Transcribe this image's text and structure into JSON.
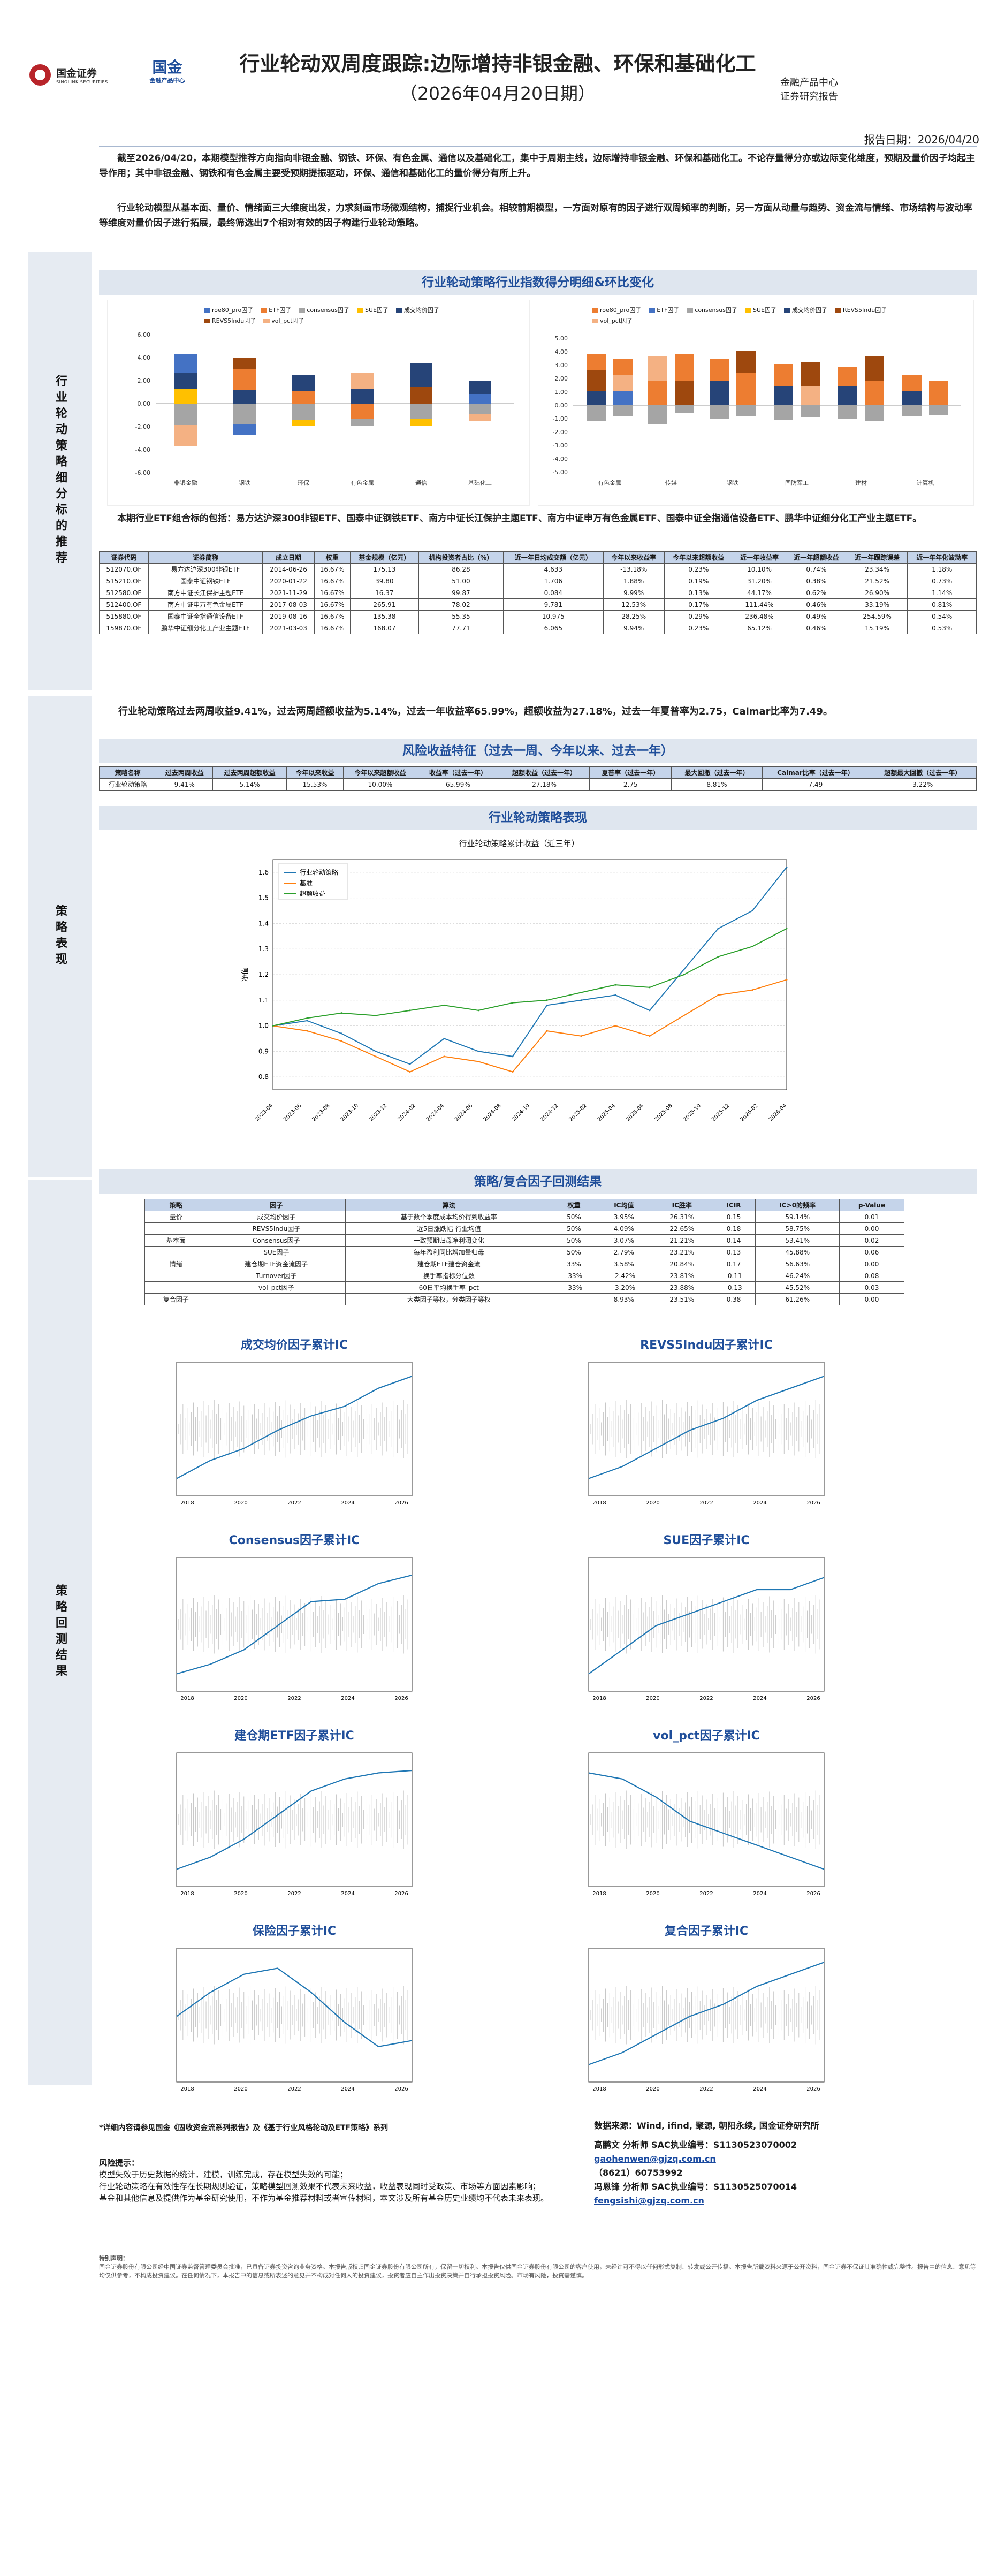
{
  "header": {
    "brand": "国金证券",
    "brand_en": "SINOLINK SECURITIES",
    "brand2": "国金",
    "brand2_sub": "金融产品中心",
    "title": "行业轮动双周度跟踪:边际增持非银金融、环保和基础化工",
    "subtitle": "（2026年04月20日期）",
    "dept1": "金融产品中心",
    "dept2": "证券研究报告",
    "report_date": "报告日期：2026/04/20"
  },
  "intro": {
    "p1": "截至2026/04/20，本期模型推荐方向指向非银金融、钢铁、环保、有色金属、通信以及基础化工，集中于周期主线，边际增持非银金融、环保和基础化工。不论存量得分亦或边际变化维度，预期及量价因子均起主导作用；其中非银金融、钢铁和有色金属主要受预期提振驱动，环保、通信和基础化工的量价得分有所上升。",
    "p2": "行业轮动模型从基本面、量价、情绪面三大维度出发，力求刻画市场微观结构，捕捉行业机会。相较前期模型，一方面对原有的因子进行双周频率的判断，另一方面从动量与趋势、资金流与情绪、市场结构与波动率等维度对量价因子进行拓展，最终筛选出7个相对有效的因子构建行业轮动策略。"
  },
  "section1": {
    "sidebar": "行业轮动策略细分标的推荐",
    "band": "行业轮动策略行业指数得分明细&环比变化",
    "left_legend": [
      "roe80_pro因子",
      "ETF因子",
      "consensus因子",
      "SUE因子",
      "成交均价因子",
      "REVS5Indu因子",
      "vol_pct因子"
    ],
    "right_legend": [
      "roe80_pro因子",
      "ETF因子",
      "consensus因子",
      "SUE因子",
      "成交均价因子",
      "REVS5Indu因子",
      "vol_pct因子"
    ],
    "left_categories": [
      "非银金融",
      "钢铁",
      "环保",
      "有色金属",
      "通信",
      "基础化工"
    ],
    "right_categories": [
      "有色金属",
      "传媒",
      "钢铁",
      "国防军工",
      "建材",
      "计算机"
    ],
    "left_yticks": [
      "6.00",
      "4.00",
      "2.00",
      "0.00",
      "-2.00",
      "-4.00",
      "-6.00"
    ],
    "right_yticks": [
      "5.00",
      "4.00",
      "3.00",
      "2.00",
      "1.00",
      "0.00",
      "-1.00",
      "-2.00",
      "-3.00",
      "-4.00",
      "-5.00"
    ],
    "etf_intro": "本期行业ETF组合标的包括：易方达沪深300非银ETF、国泰中证钢铁ETF、南方中证长江保护主题ETF、南方中证申万有色金属ETF、国泰中证全指通信设备ETF、鹏华中证细分化工产业主题ETF。",
    "table_headers": [
      "证券代码",
      "证券简称",
      "成立日期",
      "权重",
      "基金规模（亿元）",
      "机构投资者占比（%）",
      "近一年日均成交额（亿元）",
      "今年以来收益率",
      "今年以来超额收益",
      "近一年收益率",
      "近一年超额收益",
      "近一年跟踪误差",
      "近一年年化波动率"
    ],
    "table_rows": [
      [
        "512070.OF",
        "易方达沪深300非银ETF",
        "2014-06-26",
        "16.67%",
        "175.13",
        "86.28",
        "4.633",
        "-13.18%",
        "0.23%",
        "10.10%",
        "0.74%",
        "23.34%",
        "1.18%"
      ],
      [
        "515210.OF",
        "国泰中证钢铁ETF",
        "2020-01-22",
        "16.67%",
        "39.80",
        "51.00",
        "1.706",
        "1.88%",
        "0.19%",
        "31.20%",
        "0.38%",
        "21.52%",
        "0.73%"
      ],
      [
        "512580.OF",
        "南方中证长江保护主题ETF",
        "2021-11-29",
        "16.67%",
        "16.37",
        "99.87",
        "0.084",
        "9.99%",
        "0.13%",
        "44.17%",
        "0.62%",
        "26.90%",
        "1.14%"
      ],
      [
        "512400.OF",
        "南方中证申万有色金属ETF",
        "2017-08-03",
        "16.67%",
        "265.91",
        "78.02",
        "9.781",
        "12.53%",
        "0.17%",
        "111.44%",
        "0.46%",
        "33.19%",
        "0.81%"
      ],
      [
        "515880.OF",
        "国泰中证全指通信设备ETF",
        "2019-08-16",
        "16.67%",
        "135.38",
        "55.35",
        "10.975",
        "28.25%",
        "0.29%",
        "236.48%",
        "0.49%",
        "254.59%",
        "0.54%"
      ],
      [
        "159870.OF",
        "鹏华中证细分化工产业主题ETF",
        "2021-03-03",
        "16.67%",
        "168.07",
        "77.71",
        "6.065",
        "9.94%",
        "0.23%",
        "65.12%",
        "0.46%",
        "15.19%",
        "0.53%"
      ]
    ]
  },
  "section2": {
    "sidebar": "策略表现",
    "perf_text": "行业轮动策略过去两周收益9.41%，过去两周超额收益为5.14%，过去一年收益率65.99%，超额收益为27.18%，过去一年夏普率为2.75，Calmar比率为7.49。",
    "risk_band": "风险收益特征（过去一周、今年以来、过去一年）",
    "risk_headers": [
      "策略名称",
      "过去两周收益",
      "过去两周超额收益",
      "今年以来收益",
      "今年以来超额收益",
      "收益率（过去一年）",
      "超额收益（过去一年）",
      "夏普率（过去一年）",
      "最大回撤（过去一年）",
      "Calmar比率（过去一年）",
      "超额最大回撤（过去一年）"
    ],
    "risk_row": [
      "行业轮动策略",
      "9.41%",
      "5.14%",
      "15.53%",
      "10.00%",
      "65.99%",
      "27.18%",
      "2.75",
      "8.81%",
      "7.49",
      "3.22%"
    ],
    "perf_band": "行业轮动策略表现",
    "chart_title": "行业轮动策略累计收益（近三年）",
    "legend": [
      "行业轮动策略",
      "基准",
      "超额收益"
    ],
    "ylabel": "净值",
    "yticks": [
      "1.6",
      "1.5",
      "1.4",
      "1.3",
      "1.2",
      "1.1",
      "1.0",
      "0.9",
      "0.8"
    ],
    "xticks": [
      "2023-04",
      "2023-06",
      "2023-08",
      "2023-10",
      "2023-12",
      "2024-02",
      "2024-04",
      "2024-06",
      "2024-08",
      "2024-10",
      "2024-12",
      "2025-02",
      "2025-04",
      "2025-06",
      "2025-08",
      "2025-10",
      "2025-12",
      "2026-02",
      "2026-04"
    ]
  },
  "chart_data": {
    "type": "line",
    "title": "行业轮动策略累计收益（近三年）",
    "xlabel": "",
    "ylabel": "净值",
    "x": [
      "2023-04",
      "2023-07",
      "2023-10",
      "2024-01",
      "2024-02",
      "2024-04",
      "2024-07",
      "2024-09",
      "2024-10",
      "2024-12",
      "2025-03",
      "2025-04",
      "2025-07",
      "2025-10",
      "2026-01",
      "2026-04"
    ],
    "series": [
      {
        "name": "行业轮动策略",
        "values": [
          1.0,
          1.02,
          0.97,
          0.9,
          0.85,
          0.95,
          0.9,
          0.88,
          1.08,
          1.1,
          1.12,
          1.06,
          1.22,
          1.38,
          1.45,
          1.62
        ]
      },
      {
        "name": "基准",
        "values": [
          1.0,
          0.98,
          0.94,
          0.88,
          0.82,
          0.88,
          0.86,
          0.82,
          0.98,
          0.96,
          1.0,
          0.96,
          1.04,
          1.12,
          1.14,
          1.18
        ]
      },
      {
        "name": "超额收益",
        "values": [
          1.0,
          1.03,
          1.05,
          1.04,
          1.06,
          1.08,
          1.06,
          1.09,
          1.1,
          1.13,
          1.16,
          1.15,
          1.2,
          1.27,
          1.31,
          1.38
        ]
      }
    ],
    "ylim": [
      0.75,
      1.65
    ]
  },
  "section3": {
    "sidebar": "策略回测结果",
    "band": "策略/复合因子回测结果",
    "headers": [
      "策略",
      "因子",
      "算法",
      "权重",
      "IC均值",
      "IC胜率",
      "ICIR",
      "IC>0的频率",
      "p-Value"
    ],
    "rows": [
      [
        "量价",
        "成交均价因子",
        "基于数个季度成本均价得到收益率",
        "50%",
        "3.95%",
        "26.31%",
        "0.15",
        "59.14%",
        "0.01"
      ],
      [
        "",
        "REVS5Indu因子",
        "近5日涨跌幅-行业均值",
        "50%",
        "4.09%",
        "22.65%",
        "0.18",
        "58.75%",
        "0.00"
      ],
      [
        "基本面",
        "Consensus因子",
        "一致预期归母净利润变化",
        "50%",
        "3.07%",
        "21.21%",
        "0.14",
        "53.41%",
        "0.02"
      ],
      [
        "",
        "SUE因子",
        "每年盈利同比增加量归母",
        "50%",
        "2.79%",
        "23.21%",
        "0.13",
        "45.88%",
        "0.06"
      ],
      [
        "情绪",
        "建仓期ETF资金流因子",
        "建仓期ETF建仓资金流",
        "33%",
        "3.58%",
        "20.84%",
        "0.17",
        "56.63%",
        "0.00"
      ],
      [
        "",
        "Turnover因子",
        "换手率指标分位数",
        "-33%",
        "-2.42%",
        "23.81%",
        "-0.11",
        "46.24%",
        "0.08"
      ],
      [
        "",
        "vol_pct因子",
        "60日平均换手率_pct",
        "-33%",
        "-3.20%",
        "23.88%",
        "-0.13",
        "45.52%",
        "0.03"
      ],
      [
        "复合因子",
        "",
        "大类因子等权，分类因子等权",
        "",
        "8.93%",
        "23.51%",
        "0.38",
        "61.26%",
        "0.00"
      ]
    ],
    "ic_titles": [
      "成交均价因子累计IC",
      "REVS5Indu因子累计IC",
      "Consensus因子累计IC",
      "SUE因子累计IC",
      "建仓期ETF因子累计IC",
      "vol_pct因子累计IC",
      "保险因子累计IC",
      "复合因子累计IC"
    ],
    "ic_xticks": [
      "2018",
      "2020",
      "2022",
      "2024",
      "2026"
    ]
  },
  "footer": {
    "note": "*详细内容请参见国金《固收资金流系列报告》及《基于行业风格轮动及ETF策略》系列",
    "data_source": "数据来源：Wind, ifind, 聚源, 朝阳永续, 国金证券研究所",
    "analyst1": "高鹏文  分析师 SAC执业编号：S1130523070002",
    "email1": "gaohenwen@gjzq.com.cn",
    "phone": "（8621）60753992",
    "analyst2": "冯恩锋  分析师 SAC执业编号：S1130525070014",
    "email2": "fengsishi@gjzq.com.cn",
    "risk_title": "风险提示：",
    "risk1": "模型失效于历史数据的统计，建模，训练完成，存在模型失效的可能；",
    "risk2": "行业轮动策略在有效性存在长期规则验证，策略模型回测效果不代表未来收益，收益表现同时受政策、市场等方面因素影响；",
    "risk3": "基金和其他信息及提供作为基金研究使用，不作为基金推荐材料或者宣传材料，本文涉及所有基金历史业绩均不代表未来表现。",
    "disclaimer_title": "特别声明：",
    "disclaimer": "国金证券股份有限公司经中国证券监督管理委员会批准，已具备证券投资咨询业务资格。本报告版权归国金证券股份有限公司所有，保留一切权利。本报告仅供国金证券股份有限公司的客户使用，未经许可不得以任何形式复制、转发或公开传播。本报告所载资料来源于公开资料，国金证券不保证其准确性或完整性。报告中的信息、意见等均仅供参考，不构成投资建议。在任何情况下，本报告中的信息或所表述的意见并不构成对任何人的投资建议，投资者应自主作出投资决策并自行承担投资风险。市场有风险，投资需谨慎。"
  }
}
